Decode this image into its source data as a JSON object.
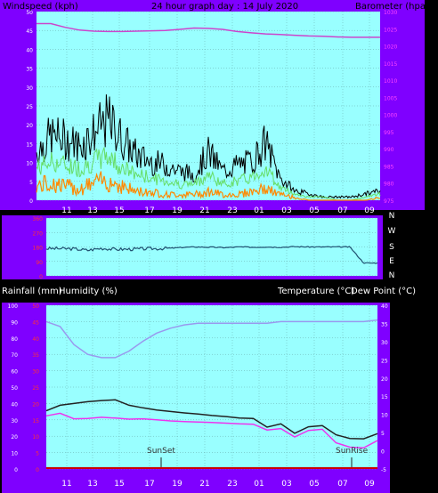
{
  "header": {
    "left": "Windspeed (kph)",
    "center": "24 hour graph day : 14 July 2020",
    "right": "Barometer (hpa)"
  },
  "labels": {
    "rainfall": "Rainfall (mm)",
    "humidity": "Humidity (%)",
    "temperature": "Temperature (°C)",
    "dewpoint": "Dew Point (°C)",
    "sunset": "SunSet",
    "sunrise": "SunRise"
  },
  "colors": {
    "frame": "#7f00ff",
    "plot": "#99ffff",
    "grid": "#66aaaa",
    "white": "#ffffff",
    "pressure": "#cc44cc",
    "gust": "#000000",
    "avgwind": "#66dd66",
    "lull": "#ff8800",
    "direction": "#205070",
    "humidity": "#9999ee",
    "temperature": "#222222",
    "dewpoint": "#ee33ee",
    "rain": "#cc0000",
    "red_tick": "#ff3333",
    "pink_tick": "#ff44ff"
  },
  "chart_data": [
    {
      "type": "line",
      "name": "wind-barometer",
      "x_ticks": [
        "11",
        "13",
        "15",
        "17",
        "19",
        "21",
        "23",
        "01",
        "03",
        "05",
        "07",
        "09"
      ],
      "ylim_left": [
        0,
        50
      ],
      "y_ticks_left": [
        "0",
        "5",
        "10",
        "15",
        "20",
        "25",
        "30",
        "35",
        "40",
        "45",
        "50"
      ],
      "ylim_right": [
        975,
        1030
      ],
      "y_ticks_right": [
        "975",
        "980",
        "985",
        "990",
        "995",
        "1000",
        "1005",
        "1010",
        "1015",
        "1020",
        "1025",
        "1030"
      ],
      "series": [
        {
          "key": "gust",
          "t": [
            0,
            1,
            2,
            3,
            4,
            5,
            6,
            7,
            8,
            9,
            10,
            11,
            12,
            13,
            14,
            15,
            16,
            17,
            18,
            19,
            20,
            21,
            22,
            23,
            24
          ],
          "y": [
            15,
            20,
            19,
            17,
            21,
            25,
            19,
            14,
            12,
            11,
            9,
            8,
            15,
            9,
            11,
            12,
            18,
            7,
            3,
            2,
            1,
            1,
            1,
            2,
            3
          ]
        },
        {
          "key": "avgwind",
          "t": [
            0,
            1,
            2,
            3,
            4,
            5,
            6,
            7,
            8,
            9,
            10,
            11,
            12,
            13,
            14,
            15,
            16,
            17,
            18,
            19,
            20,
            21,
            22,
            23,
            24
          ],
          "y": [
            10,
            12,
            11,
            10,
            12,
            14,
            10,
            8,
            7,
            6,
            5,
            5,
            8,
            5,
            6,
            7,
            10,
            4,
            2,
            1,
            1,
            0,
            0,
            1,
            2
          ]
        },
        {
          "key": "lull",
          "t": [
            0,
            1,
            2,
            3,
            4,
            5,
            6,
            7,
            8,
            9,
            10,
            11,
            12,
            13,
            14,
            15,
            16,
            17,
            18,
            19,
            20,
            21,
            22,
            23,
            24
          ],
          "y": [
            5,
            6,
            5,
            4,
            6,
            7,
            5,
            3,
            3,
            2,
            2,
            2,
            3,
            2,
            2,
            3,
            4,
            2,
            1,
            0,
            0,
            0,
            0,
            0,
            1
          ]
        },
        {
          "key": "pressure",
          "t": [
            0,
            1,
            2,
            3,
            4,
            5,
            6,
            7,
            8,
            9,
            10,
            11,
            12,
            13,
            14,
            15,
            16,
            17,
            18,
            19,
            20,
            21,
            22,
            23,
            24
          ],
          "y": [
            1026.5,
            1026.5,
            1025.4,
            1024.6,
            1024.3,
            1024.2,
            1024.2,
            1024.3,
            1024.4,
            1024.5,
            1024.8,
            1025.2,
            1025.1,
            1024.8,
            1024.2,
            1023.8,
            1023.5,
            1023.3,
            1023.1,
            1022.9,
            1022.8,
            1022.6,
            1022.5,
            1022.5,
            1022.5
          ]
        }
      ]
    },
    {
      "type": "line",
      "name": "wind-direction",
      "y_ticks": [
        "360",
        "270",
        "180",
        "90",
        "0"
      ],
      "y_ticks_right": [
        "N",
        "W",
        "S",
        "E",
        "N"
      ],
      "series": [
        {
          "key": "direction",
          "t": [
            0,
            1,
            2,
            3,
            4,
            5,
            6,
            7,
            8,
            9,
            10,
            11,
            12,
            13,
            14,
            15,
            16,
            17,
            18,
            19,
            20,
            21,
            22,
            23,
            24
          ],
          "y": [
            170,
            170,
            168,
            160,
            172,
            165,
            166,
            168,
            170,
            172,
            178,
            180,
            178,
            176,
            180,
            178,
            180,
            178,
            182,
            180,
            180,
            180,
            180,
            80,
            80
          ]
        }
      ]
    },
    {
      "type": "line",
      "name": "temperature-humidity",
      "x_ticks": [
        "11",
        "13",
        "15",
        "17",
        "19",
        "21",
        "23",
        "01",
        "03",
        "05",
        "07",
        "09"
      ],
      "ylim_left": [
        0,
        100
      ],
      "y_ticks_left": [
        "0",
        "10",
        "20",
        "30",
        "40",
        "50",
        "60",
        "70",
        "80",
        "90",
        "100"
      ],
      "y_ticks_rain": [
        "0",
        "5",
        "10",
        "15",
        "20",
        "25",
        "30",
        "35",
        "40",
        "45",
        "50"
      ],
      "ylim_right": [
        -5,
        40
      ],
      "y_ticks_right": [
        "-5",
        "0",
        "5",
        "10",
        "15",
        "20",
        "25",
        "30",
        "35",
        "40"
      ],
      "series": [
        {
          "key": "humidity",
          "t": [
            0,
            1,
            2,
            3,
            4,
            5,
            6,
            7,
            8,
            9,
            10,
            11,
            12,
            13,
            14,
            15,
            16,
            17,
            18,
            19,
            20,
            21,
            22,
            23,
            24
          ],
          "y": [
            90,
            87,
            76,
            70,
            68,
            68,
            72,
            78,
            83,
            86,
            88,
            89,
            89,
            89,
            89,
            89,
            89,
            90,
            90,
            90,
            90,
            90,
            90,
            90,
            91
          ]
        },
        {
          "key": "temperature",
          "t": [
            0,
            1,
            2,
            3,
            4,
            5,
            6,
            7,
            8,
            9,
            10,
            11,
            12,
            13,
            14,
            15,
            16,
            17,
            18,
            19,
            20,
            21,
            22,
            23,
            24
          ],
          "y": [
            11,
            12.5,
            13,
            13.5,
            13.8,
            14,
            12.5,
            11.8,
            11.2,
            10.8,
            10.4,
            10.1,
            9.7,
            9.4,
            9.0,
            8.9,
            6.5,
            7.4,
            4.8,
            6.6,
            6.9,
            4.4,
            3.4,
            3.3,
            4.7
          ]
        },
        {
          "key": "dewpoint",
          "t": [
            0,
            1,
            2,
            3,
            4,
            5,
            6,
            7,
            8,
            9,
            10,
            11,
            12,
            13,
            14,
            15,
            16,
            17,
            18,
            19,
            20,
            21,
            22,
            23,
            24
          ],
          "y": [
            9.6,
            10.3,
            8.8,
            8.9,
            9.2,
            9.0,
            8.7,
            8.8,
            8.5,
            8.2,
            8.0,
            7.9,
            7.8,
            7.6,
            7.4,
            7.3,
            5.7,
            6.1,
            3.8,
            5.6,
            5.9,
            2.2,
            1.0,
            0.8,
            2.8
          ]
        }
      ]
    }
  ]
}
